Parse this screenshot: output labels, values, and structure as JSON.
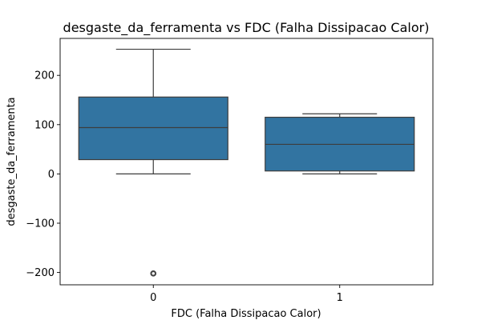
{
  "chart_data": {
    "type": "box",
    "title": "desgaste_da_ferramenta vs FDC (Falha Dissipacao Calor)",
    "xlabel": "FDC (Falha Dissipacao Calor)",
    "ylabel": "desgaste_da_ferramenta",
    "categories": [
      "0",
      "1"
    ],
    "ylim": [
      -225,
      275
    ],
    "yticks": [
      -200,
      -100,
      0,
      100,
      200
    ],
    "yticklabels": [
      "−200",
      "−100",
      "0",
      "100",
      "200"
    ],
    "box_color": "#3274a1",
    "edge_color": "#3d3d3d",
    "boxes": [
      {
        "category": "0",
        "whisker_low": 0,
        "q1": 29,
        "median": 94,
        "q3": 156,
        "whisker_high": 253,
        "outliers": [
          -202
        ]
      },
      {
        "category": "1",
        "whisker_low": 0,
        "q1": 6,
        "median": 60,
        "q3": 115,
        "whisker_high": 122,
        "outliers": []
      }
    ]
  }
}
